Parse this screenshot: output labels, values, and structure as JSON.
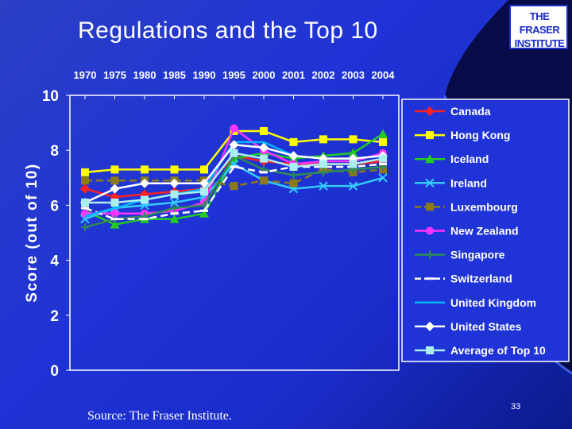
{
  "slide": {
    "title": "Regulations and the Top 10",
    "source": "Source: The Fraser Institute.",
    "page_number": "33",
    "logo_text": [
      "THE FRASER",
      "INSTITUTE"
    ]
  },
  "chart_data": {
    "type": "line",
    "title": "",
    "xlabel": "",
    "ylabel": "Score (out of 10)",
    "ylim": [
      0,
      10
    ],
    "yticks": [
      0,
      2,
      4,
      6,
      8,
      10
    ],
    "x_axis_position": "top",
    "grid": false,
    "legend_position": "right",
    "categories": [
      "1970",
      "1975",
      "1980",
      "1985",
      "1990",
      "1995",
      "2000",
      "2001",
      "2002",
      "2003",
      "2004"
    ],
    "series": [
      {
        "name": "Canada",
        "color": "#ff2020",
        "marker": "diamond",
        "dashed": false,
        "values": [
          6.6,
          6.3,
          6.4,
          6.5,
          6.6,
          7.8,
          7.6,
          7.5,
          7.5,
          7.5,
          7.6
        ]
      },
      {
        "name": "Hong Kong",
        "color": "#ffff00",
        "marker": "square",
        "dashed": false,
        "values": [
          7.2,
          7.3,
          7.3,
          7.3,
          7.3,
          8.7,
          8.7,
          8.3,
          8.4,
          8.4,
          8.3
        ]
      },
      {
        "name": "Iceland",
        "color": "#22cc22",
        "marker": "triangle",
        "dashed": false,
        "values": [
          5.8,
          5.3,
          5.5,
          5.5,
          5.7,
          7.7,
          7.9,
          7.7,
          7.8,
          7.9,
          8.6
        ]
      },
      {
        "name": "Ireland",
        "color": "#33ccff",
        "marker": "x",
        "dashed": false,
        "values": [
          5.5,
          5.9,
          6.0,
          6.1,
          6.3,
          7.5,
          6.9,
          6.6,
          6.7,
          6.7,
          7.0
        ]
      },
      {
        "name": "Luxembourg",
        "color": "#8c7a1a",
        "marker": "square",
        "dashed": true,
        "values": [
          6.9,
          6.9,
          6.9,
          6.9,
          6.9,
          6.7,
          6.9,
          6.8,
          7.3,
          7.2,
          7.3
        ]
      },
      {
        "name": "New Zealand",
        "color": "#ff33ff",
        "marker": "circle",
        "dashed": false,
        "values": [
          5.7,
          5.7,
          5.7,
          5.8,
          6.1,
          8.8,
          8.0,
          7.5,
          7.6,
          7.6,
          7.9
        ]
      },
      {
        "name": "Singapore",
        "color": "#2e8b57",
        "marker": "plus",
        "dashed": false,
        "values": [
          5.2,
          5.5,
          5.6,
          5.9,
          6.0,
          7.8,
          7.3,
          7.1,
          7.2,
          7.3,
          7.4
        ]
      },
      {
        "name": "Switzerland",
        "color": "#ffffff",
        "marker": "dash",
        "dashed": true,
        "values": [
          5.9,
          5.5,
          5.5,
          5.7,
          5.8,
          7.4,
          7.2,
          7.4,
          7.4,
          7.4,
          7.5
        ]
      },
      {
        "name": "United Kingdom",
        "color": "#00b4ff",
        "marker": "none",
        "dashed": false,
        "values": [
          5.6,
          5.9,
          6.2,
          6.4,
          6.6,
          8.3,
          8.3,
          7.8,
          7.7,
          7.7,
          7.8
        ]
      },
      {
        "name": "United States",
        "color": "#ffffff",
        "marker": "diamond",
        "dashed": false,
        "values": [
          6.1,
          6.6,
          6.8,
          6.8,
          6.8,
          8.2,
          8.1,
          7.8,
          7.7,
          7.7,
          7.8
        ]
      },
      {
        "name": "Average of Top 10",
        "color": "#aaf0f0",
        "marker": "square",
        "dashed": false,
        "values": [
          6.1,
          6.1,
          6.2,
          6.4,
          6.5,
          7.9,
          7.7,
          7.4,
          7.5,
          7.5,
          7.7
        ]
      }
    ]
  }
}
